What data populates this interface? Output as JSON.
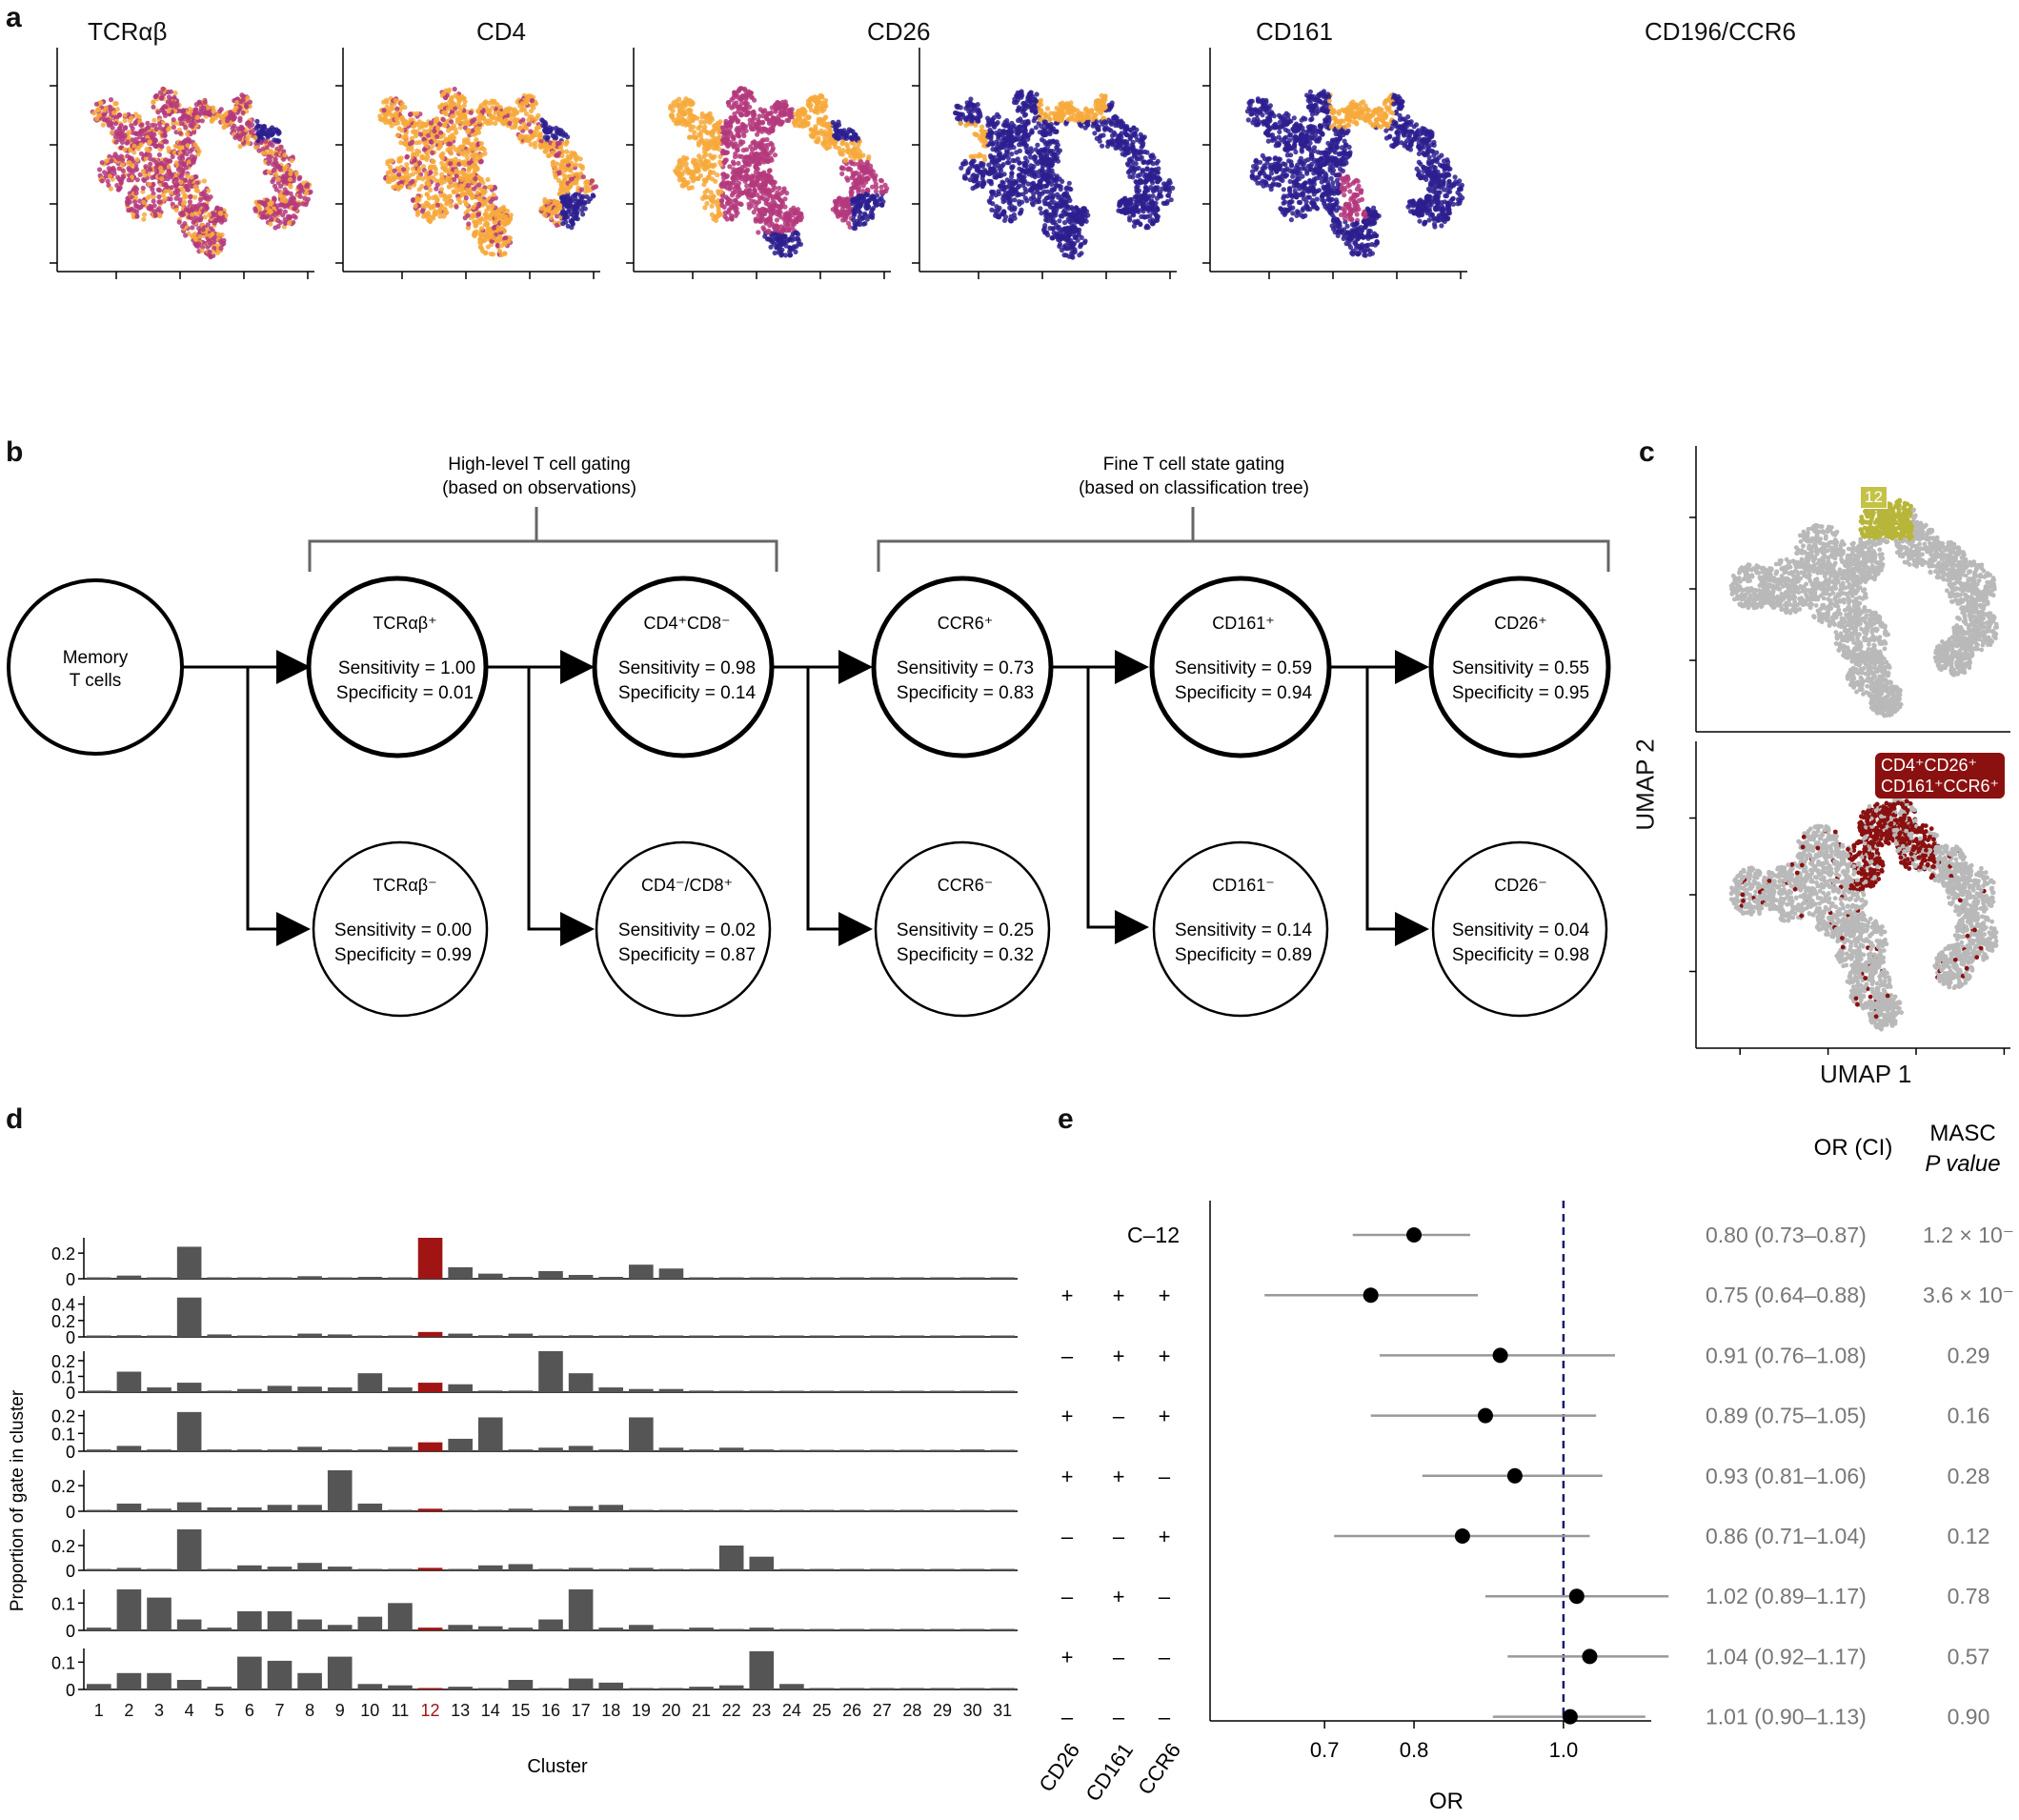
{
  "panel_letters": {
    "a": "a",
    "b": "b",
    "c": "c",
    "d": "d",
    "e": "e"
  },
  "panel_a": {
    "titles": [
      "TCRαβ",
      "CD4",
      "CD26",
      "CD161",
      "CD196/CCR6"
    ],
    "colors": {
      "low": "#2d1e8f",
      "mid": "#b4387c",
      "high": "#f7a93b"
    }
  },
  "panel_b": {
    "group1": {
      "line1": "High-level T cell gating",
      "line2": "(based on observations)"
    },
    "group2": {
      "line1": "Fine T cell state gating",
      "line2": "(based on classification tree)"
    },
    "start": {
      "line1": "Memory",
      "line2": "T cells"
    },
    "top": [
      {
        "name": "TCRαβ⁺",
        "sens": "Sensitivity = 1.00",
        "spec": "Specificity = 0.01"
      },
      {
        "name": "CD4⁺CD8⁻",
        "sens": "Sensitivity = 0.98",
        "spec": "Specificity = 0.14"
      },
      {
        "name": "CCR6⁺",
        "sens": "Sensitivity = 0.73",
        "spec": "Specificity = 0.83"
      },
      {
        "name": "CD161⁺",
        "sens": "Sensitivity =  0.59",
        "spec": "Specificity = 0.94"
      },
      {
        "name": "CD26⁺",
        "sens": "Sensitivity = 0.55",
        "spec": "Specificity = 0.95"
      }
    ],
    "bottom": [
      {
        "name": "TCRαβ⁻",
        "sens": "Sensitivity = 0.00",
        "spec": "Specificity = 0.99"
      },
      {
        "name": "CD4⁻/CD8⁺",
        "sens": "Sensitivity = 0.02",
        "spec": "Specificity = 0.87"
      },
      {
        "name": "CCR6⁻",
        "sens": "Sensitivity =  0.25",
        "spec": "Specificity = 0.32"
      },
      {
        "name": "CD161⁻",
        "sens": "Sensitivity = 0.14",
        "spec": "Specificity = 0.89"
      },
      {
        "name": "CD26⁻",
        "sens": "Sensitivity = 0.04",
        "spec": "Specificity = 0.98"
      }
    ]
  },
  "panel_c": {
    "cluster_label": "12",
    "gate_label_line1": "CD4⁺CD26⁺",
    "gate_label_line2": "CD161⁺CCR6⁺",
    "ylabel": "UMAP 2",
    "xlabel": "UMAP 1",
    "colors": {
      "background": "#b9b9b9",
      "cluster": "#b8b63a",
      "gate": "#8b1010"
    }
  },
  "chart_data": [
    {
      "type": "bar",
      "panel": "d",
      "xlabel": "Cluster",
      "ylabel": "Proportion of gate in cluster",
      "categories": [
        "1",
        "2",
        "3",
        "4",
        "5",
        "6",
        "7",
        "8",
        "9",
        "10",
        "11",
        "12",
        "13",
        "14",
        "15",
        "16",
        "17",
        "18",
        "19",
        "20",
        "21",
        "22",
        "23",
        "24",
        "25",
        "26",
        "27",
        "28",
        "29",
        "30",
        "31"
      ],
      "highlight_category": "12",
      "highlight_color": "#a01414",
      "bar_color": "#555555",
      "rows": [
        {
          "ticks": [
            "0.2",
            "0"
          ],
          "ylim": [
            0,
            0.32
          ],
          "values": [
            0.005,
            0.025,
            0.01,
            0.25,
            0.01,
            0.005,
            0.01,
            0.02,
            0.01,
            0.015,
            0.01,
            0.32,
            0.09,
            0.04,
            0.015,
            0.06,
            0.03,
            0.015,
            0.11,
            0.08,
            0.005,
            0.005,
            0.005,
            0.005,
            0.005,
            0.005,
            0.005,
            0.005,
            0.005,
            0.005,
            0.005
          ]
        },
        {
          "ticks": [
            "0.4",
            "0.2",
            "0"
          ],
          "ylim": [
            0,
            0.5
          ],
          "values": [
            0.01,
            0.02,
            0.01,
            0.48,
            0.03,
            0.01,
            0.01,
            0.04,
            0.03,
            0.01,
            0.01,
            0.06,
            0.04,
            0.02,
            0.04,
            0.01,
            0.02,
            0.01,
            0.02,
            0.01,
            0.005,
            0.005,
            0.005,
            0.005,
            0.005,
            0.005,
            0.005,
            0.005,
            0.005,
            0.005,
            0.005
          ]
        },
        {
          "ticks": [
            "0.2",
            "0.1",
            "0"
          ],
          "ylim": [
            0,
            0.26
          ],
          "values": [
            0.01,
            0.13,
            0.03,
            0.06,
            0.01,
            0.02,
            0.04,
            0.035,
            0.03,
            0.12,
            0.03,
            0.06,
            0.05,
            0.01,
            0.01,
            0.26,
            0.12,
            0.03,
            0.02,
            0.02,
            0.01,
            0.005,
            0.005,
            0.005,
            0.005,
            0.005,
            0.005,
            0.005,
            0.005,
            0.005,
            0.005
          ]
        },
        {
          "ticks": [
            "0.2",
            "0.1",
            "0"
          ],
          "ylim": [
            0,
            0.23
          ],
          "values": [
            0.01,
            0.03,
            0.01,
            0.22,
            0.01,
            0.01,
            0.01,
            0.025,
            0.01,
            0.01,
            0.025,
            0.05,
            0.07,
            0.19,
            0.01,
            0.02,
            0.03,
            0.01,
            0.19,
            0.02,
            0.01,
            0.02,
            0.01,
            0.005,
            0.005,
            0.005,
            0.005,
            0.005,
            0.005,
            0.01,
            0.005
          ]
        },
        {
          "ticks": [
            "0.2",
            "0"
          ],
          "ylim": [
            0,
            0.32
          ],
          "values": [
            0.01,
            0.06,
            0.02,
            0.07,
            0.03,
            0.03,
            0.05,
            0.05,
            0.32,
            0.06,
            0.01,
            0.02,
            0.01,
            0.01,
            0.02,
            0.01,
            0.04,
            0.05,
            0.01,
            0.005,
            0.005,
            0.005,
            0.005,
            0.005,
            0.005,
            0.005,
            0.005,
            0.005,
            0.005,
            0.005,
            0.005
          ]
        },
        {
          "ticks": [
            "0.2",
            "0"
          ],
          "ylim": [
            0,
            0.33
          ],
          "values": [
            0.01,
            0.02,
            0.01,
            0.33,
            0.01,
            0.04,
            0.03,
            0.06,
            0.03,
            0.01,
            0.01,
            0.02,
            0.01,
            0.04,
            0.05,
            0.01,
            0.02,
            0.01,
            0.02,
            0.01,
            0.01,
            0.2,
            0.11,
            0.005,
            0.005,
            0.005,
            0.005,
            0.005,
            0.005,
            0.005,
            0.005
          ]
        },
        {
          "ticks": [
            "0.1",
            "0"
          ],
          "ylim": [
            0,
            0.15
          ],
          "values": [
            0.01,
            0.15,
            0.12,
            0.04,
            0.01,
            0.07,
            0.07,
            0.04,
            0.02,
            0.05,
            0.1,
            0.01,
            0.02,
            0.015,
            0.01,
            0.04,
            0.15,
            0.01,
            0.02,
            0.005,
            0.01,
            0.005,
            0.01,
            0.005,
            0.005,
            0.005,
            0.005,
            0.005,
            0.005,
            0.005,
            0.005
          ]
        },
        {
          "ticks": [
            "0.1",
            "0"
          ],
          "ylim": [
            0,
            0.15
          ],
          "values": [
            0.02,
            0.06,
            0.06,
            0.035,
            0.01,
            0.12,
            0.105,
            0.06,
            0.12,
            0.02,
            0.015,
            0.005,
            0.01,
            0.005,
            0.035,
            0.005,
            0.04,
            0.025,
            0.005,
            0.005,
            0.01,
            0.015,
            0.14,
            0.02,
            0.005,
            0.005,
            0.005,
            0.005,
            0.005,
            0.005,
            0.005
          ]
        }
      ]
    },
    {
      "type": "scatter",
      "panel": "e",
      "xlabel": "OR",
      "xticks": [
        "0.7",
        "0.8",
        "1.0"
      ],
      "xlim": [
        0.59,
        1.14
      ],
      "log_scale": true,
      "reference_line": 1.0,
      "marker_labels": [
        "CD26",
        "CD161",
        "CCR6"
      ],
      "col_header_or": "OR (CI)",
      "col_header_masc1": "MASC",
      "col_header_masc2": "P value",
      "rows": [
        {
          "label": "C–12",
          "signs": [
            "",
            "",
            ""
          ],
          "or": 0.8,
          "lo": 0.73,
          "hi": 0.87,
          "or_text": "0.80 (0.73–0.87)",
          "p_text": "1.2 × 10⁻"
        },
        {
          "label": "",
          "signs": [
            "+",
            "+",
            "+"
          ],
          "or": 0.75,
          "lo": 0.64,
          "hi": 0.88,
          "or_text": "0.75 (0.64–0.88)",
          "p_text": "3.6 × 10⁻"
        },
        {
          "label": "",
          "signs": [
            "–",
            "+",
            "+"
          ],
          "or": 0.91,
          "lo": 0.76,
          "hi": 1.08,
          "or_text": "0.91 (0.76–1.08)",
          "p_text": "0.29"
        },
        {
          "label": "",
          "signs": [
            "+",
            "–",
            "+"
          ],
          "or": 0.89,
          "lo": 0.75,
          "hi": 1.05,
          "or_text": "0.89 (0.75–1.05)",
          "p_text": "0.16"
        },
        {
          "label": "",
          "signs": [
            "+",
            "+",
            "–"
          ],
          "or": 0.93,
          "lo": 0.81,
          "hi": 1.06,
          "or_text": "0.93 (0.81–1.06)",
          "p_text": "0.28"
        },
        {
          "label": "",
          "signs": [
            "–",
            "–",
            "+"
          ],
          "or": 0.86,
          "lo": 0.71,
          "hi": 1.04,
          "or_text": "0.86 (0.71–1.04)",
          "p_text": "0.12"
        },
        {
          "label": "",
          "signs": [
            "–",
            "+",
            "–"
          ],
          "or": 1.02,
          "lo": 0.89,
          "hi": 1.17,
          "or_text": "1.02 (0.89–1.17)",
          "p_text": "0.78"
        },
        {
          "label": "",
          "signs": [
            "+",
            "–",
            "–"
          ],
          "or": 1.04,
          "lo": 0.92,
          "hi": 1.17,
          "or_text": "1.04 (0.92–1.17)",
          "p_text": "0.57"
        },
        {
          "label": "",
          "signs": [
            "–",
            "–",
            "–"
          ],
          "or": 1.01,
          "lo": 0.9,
          "hi": 1.13,
          "or_text": "1.01 (0.90–1.13)",
          "p_text": "0.90"
        }
      ]
    }
  ]
}
